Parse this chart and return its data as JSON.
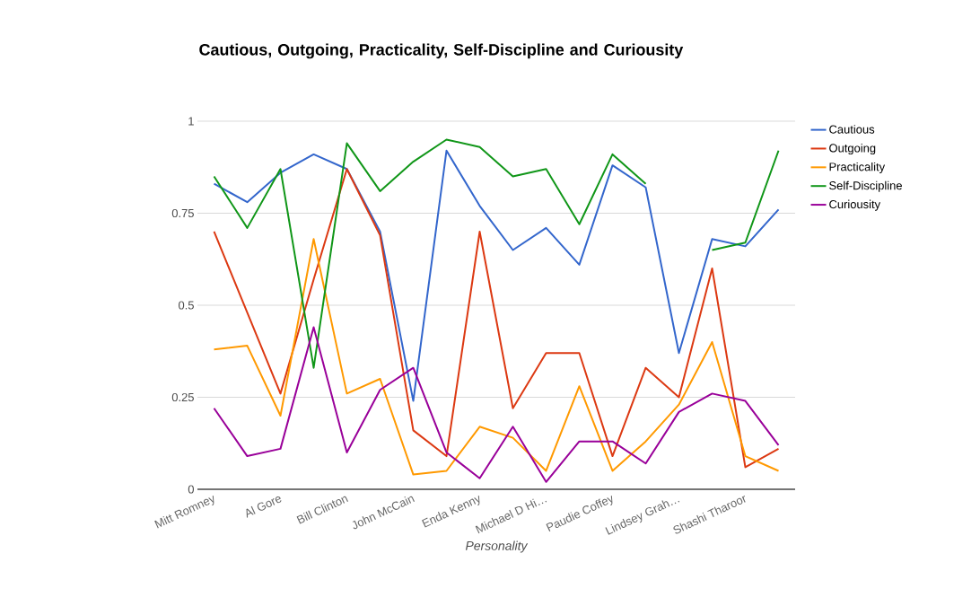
{
  "chart_data": {
    "type": "line",
    "title": "Cautious, Outgoing, Practicality, Self-Discipline and Curiousity",
    "xlabel": "Personality",
    "categories": [
      "Mitt Romney",
      null,
      "Al Gore",
      null,
      "Bill Clinton",
      null,
      "John McCain",
      null,
      "Enda Kenny",
      null,
      "Michael D Hi…",
      null,
      "Paudie Coffey",
      null,
      "Lindsey Grah…",
      null,
      "Shashi Tharoor",
      null
    ],
    "series": [
      {
        "name": "Cautious",
        "color": "#3366cc",
        "values": [
          0.83,
          0.78,
          0.86,
          0.91,
          0.87,
          0.7,
          0.24,
          0.92,
          0.77,
          0.65,
          0.71,
          0.61,
          0.88,
          0.82,
          0.37,
          0.68,
          0.66,
          0.76
        ]
      },
      {
        "name": "Outgoing",
        "color": "#dc3912",
        "values": [
          0.7,
          0.48,
          0.26,
          0.57,
          0.87,
          0.69,
          0.16,
          0.09,
          0.7,
          0.22,
          0.37,
          0.37,
          0.09,
          0.33,
          0.25,
          0.6,
          0.06,
          0.11
        ]
      },
      {
        "name": "Practicality",
        "color": "#ff9900",
        "values": [
          0.38,
          0.39,
          0.2,
          0.68,
          0.26,
          0.3,
          0.04,
          0.05,
          0.17,
          0.14,
          0.05,
          0.28,
          0.05,
          0.13,
          0.23,
          0.4,
          0.09,
          0.05
        ]
      },
      {
        "name": "Self-Discipline",
        "color": "#109618",
        "values": [
          0.85,
          0.71,
          0.87,
          0.33,
          0.94,
          0.81,
          0.89,
          0.95,
          0.93,
          0.85,
          0.87,
          0.72,
          0.91,
          0.83,
          null,
          0.65,
          0.67,
          0.92
        ]
      },
      {
        "name": "Curiousity",
        "color": "#990099",
        "values": [
          0.22,
          0.09,
          0.11,
          0.44,
          0.1,
          0.27,
          0.33,
          0.1,
          0.03,
          0.17,
          0.02,
          0.13,
          0.13,
          0.07,
          0.21,
          0.26,
          0.24,
          0.12
        ]
      }
    ],
    "ylim": [
      0,
      1
    ],
    "yticks": [
      0,
      0.25,
      0.5,
      0.75,
      1
    ],
    "grid": "y",
    "legend": "top right",
    "marker": "none",
    "line_style": "solid"
  }
}
